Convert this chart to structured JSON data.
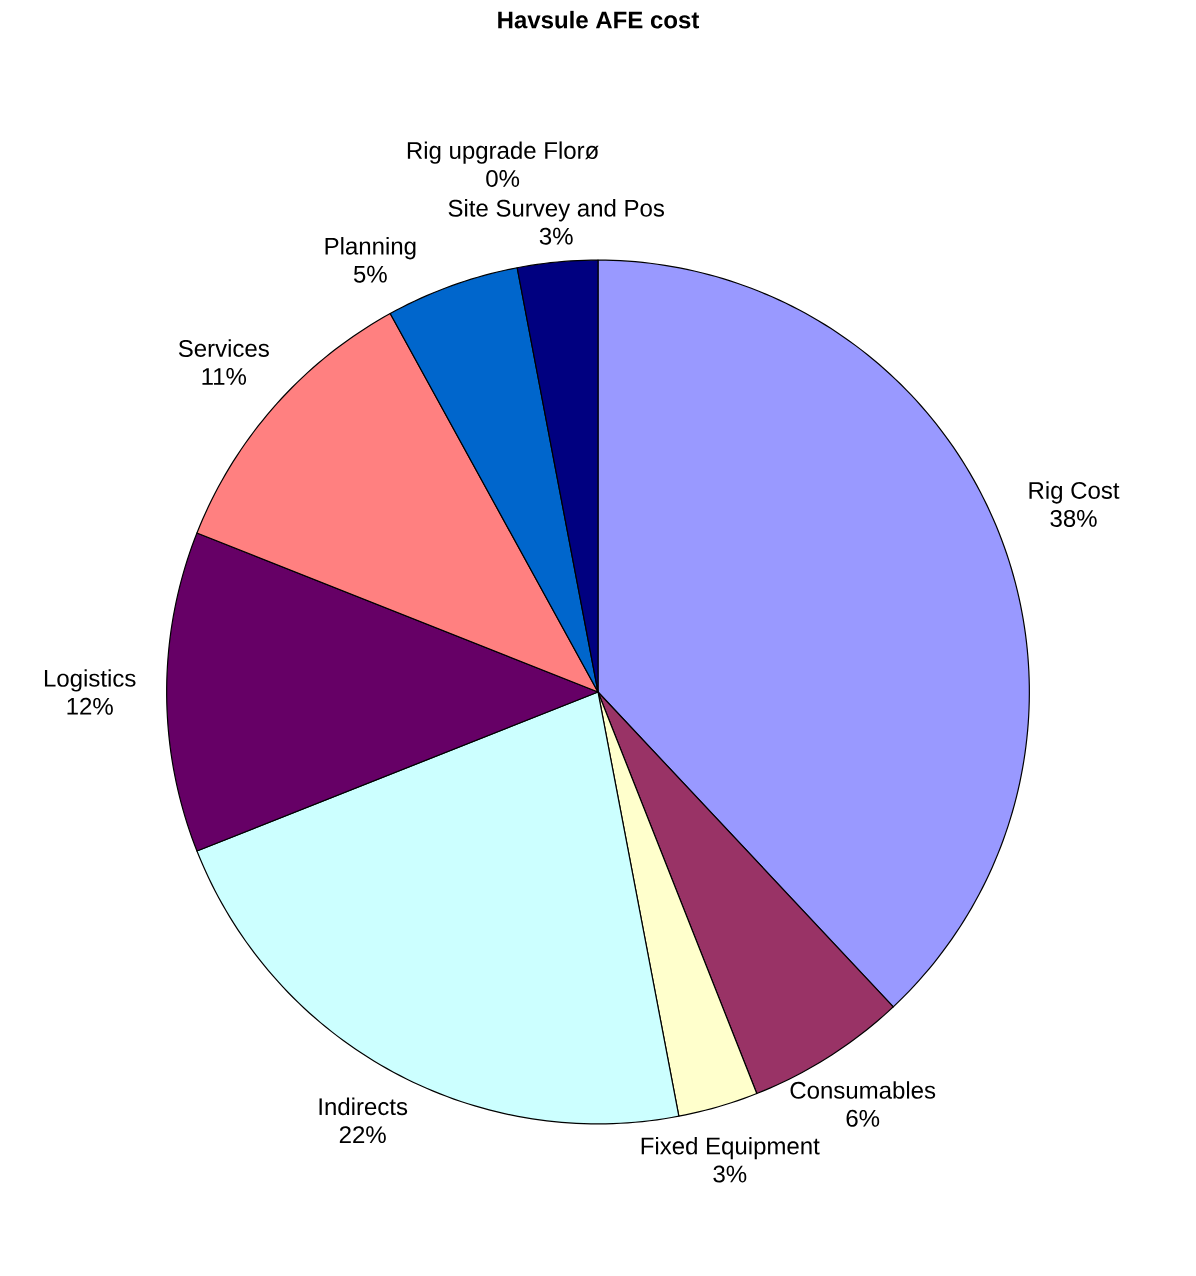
{
  "chart_data": {
    "type": "pie",
    "title": "Havsule AFE cost",
    "categories": [
      "Rig Cost",
      "Consumables",
      "Fixed Equipment",
      "Indirects",
      "Logistics",
      "Services",
      "Planning",
      "Rig upgrade Florø",
      "Site Survey and Pos"
    ],
    "values": [
      38,
      6,
      3,
      22,
      12,
      11,
      5,
      0,
      3
    ],
    "value_labels": [
      "38%",
      "6%",
      "3%",
      "22%",
      "12%",
      "11%",
      "5%",
      "0%",
      "3%"
    ],
    "colors": [
      "#9999ff",
      "#993366",
      "#ffffcc",
      "#ccffff",
      "#660066",
      "#ff8080",
      "#0066cc",
      "#ccccff",
      "#000080"
    ],
    "legend": false
  }
}
